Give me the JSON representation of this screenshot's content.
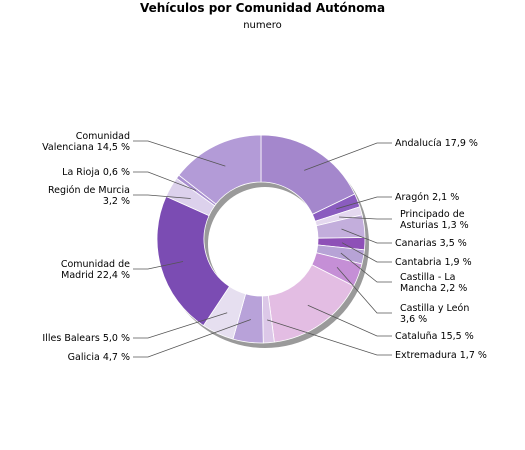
{
  "chart_data": {
    "type": "pie",
    "donut": true,
    "title": "Vehículos por Comunidad Autónoma",
    "subtitle": "numero",
    "slices": [
      {
        "label": [
          "Andalucía 17,9 %"
        ],
        "value": 17.9,
        "color": "#a487cc"
      },
      {
        "label": [
          "Aragón 2,1 %"
        ],
        "value": 2.1,
        "color": "#8a5cbf"
      },
      {
        "label": [
          "Principado de",
          "Asturias 1,3 %"
        ],
        "value": 1.3,
        "color": "#e4d8ef"
      },
      {
        "label": [
          "Canarias 3,5 %"
        ],
        "value": 3.5,
        "color": "#c3aedc"
      },
      {
        "label": [
          "Cantabria 1,9 %"
        ],
        "value": 1.9,
        "color": "#8e50b7"
      },
      {
        "label": [
          "Castilla - La",
          "Mancha 2,2 %"
        ],
        "value": 2.2,
        "color": "#b7a3d6"
      },
      {
        "label": [
          "Castilla y León",
          "3,6 %"
        ],
        "value": 3.6,
        "color": "#c58fd6"
      },
      {
        "label": [
          "Cataluña 15,5 %"
        ],
        "value": 15.5,
        "color": "#e3bde3"
      },
      {
        "label": [
          "Extremadura 1,7 %"
        ],
        "value": 1.7,
        "color": "#dcc8e8"
      },
      {
        "label": [
          "Galicia 4,7 %"
        ],
        "value": 4.7,
        "color": "#b8a2d9"
      },
      {
        "label": [
          "Illes Balears 5,0 %"
        ],
        "value": 5.0,
        "color": "#e6dff0"
      },
      {
        "label": [
          "Comunidad de",
          "Madrid 22,4 %"
        ],
        "value": 22.4,
        "color": "#7b4cb3"
      },
      {
        "label": [
          "Región de Murcia",
          "3,2 %"
        ],
        "value": 3.2,
        "color": "#dcd1ec"
      },
      {
        "label": [
          "La Rioja 0,6 %"
        ],
        "value": 0.6,
        "color": "#a98fd0"
      },
      {
        "label": [
          "Comunidad",
          "Valenciana 14,5 %"
        ],
        "value": 14.5,
        "color": "#b39bd7"
      }
    ]
  }
}
